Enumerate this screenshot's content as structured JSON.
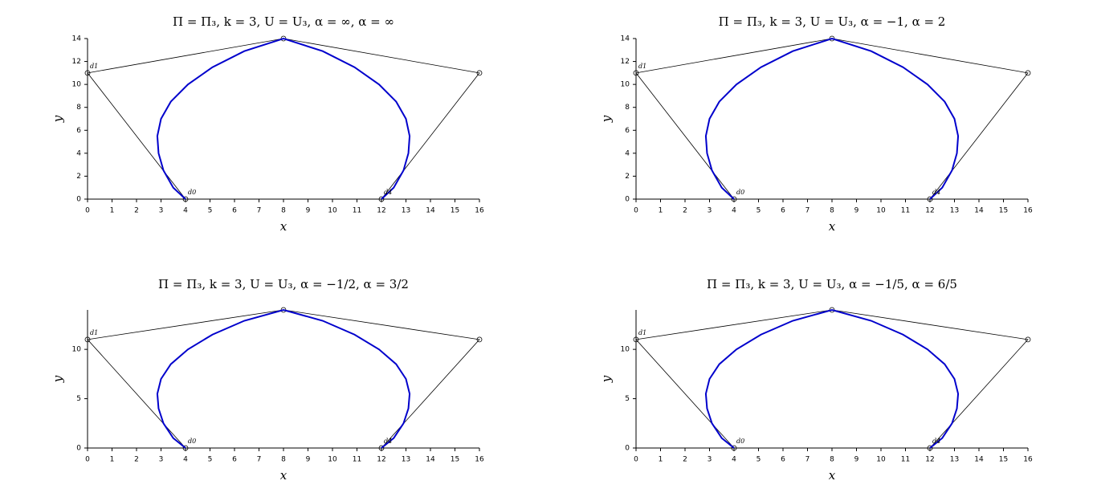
{
  "chart_data": [
    {
      "type": "line",
      "title": "Π = Π₃, k = 3, U = U₃, α = ∞, α = ∞",
      "xlabel": "x",
      "ylabel": "y",
      "xlim": [
        0,
        16
      ],
      "ylim": [
        0,
        14
      ],
      "xticks": [
        0,
        1,
        2,
        3,
        4,
        5,
        6,
        7,
        8,
        9,
        10,
        11,
        12,
        13,
        14,
        15,
        16
      ],
      "yticks": [
        0,
        2,
        4,
        6,
        8,
        10,
        12,
        14
      ],
      "series": [
        {
          "color": "#000000",
          "markers": true,
          "x": [
            4,
            0,
            8,
            16,
            12
          ],
          "y": [
            0,
            11,
            14,
            11,
            0
          ]
        },
        {
          "color": "#0000cc",
          "x": [
            4,
            3.5,
            3.1,
            2.9,
            2.85,
            3.0,
            3.4,
            4.1,
            5.1,
            6.4,
            8,
            9.6,
            10.9,
            11.9,
            12.6,
            13.0,
            13.15,
            13.1,
            12.9,
            12.5,
            12
          ],
          "y": [
            0,
            1,
            2.5,
            4,
            5.5,
            7,
            8.5,
            10,
            11.5,
            12.9,
            14,
            12.9,
            11.5,
            10,
            8.5,
            7,
            5.5,
            4,
            2.5,
            1,
            0
          ]
        }
      ],
      "annotations": [
        {
          "text": "d0",
          "x": 4,
          "y": 0
        },
        {
          "text": "d1",
          "x": 0,
          "y": 11
        },
        {
          "text": "d4",
          "x": 12,
          "y": 0
        }
      ]
    },
    {
      "type": "line",
      "title": "Π = Π₃, k = 3, U = U₃, α = −1, α = 2",
      "xlabel": "x",
      "ylabel": "y",
      "xlim": [
        0,
        16
      ],
      "ylim": [
        0,
        14
      ],
      "xticks": [
        0,
        1,
        2,
        3,
        4,
        5,
        6,
        7,
        8,
        9,
        10,
        11,
        12,
        13,
        14,
        15,
        16
      ],
      "yticks": [
        0,
        2,
        4,
        6,
        8,
        10,
        12,
        14
      ],
      "series": [
        {
          "color": "#000000",
          "markers": true,
          "x": [
            4,
            0,
            8,
            16,
            12
          ],
          "y": [
            0,
            11,
            14,
            11,
            0
          ]
        },
        {
          "color": "#0000cc",
          "x": [
            4,
            3.5,
            3.1,
            2.9,
            2.85,
            3.0,
            3.4,
            4.1,
            5.1,
            6.4,
            8,
            9.6,
            10.9,
            11.9,
            12.6,
            13.0,
            13.15,
            13.1,
            12.9,
            12.5,
            12
          ],
          "y": [
            0,
            1,
            2.5,
            4,
            5.5,
            7,
            8.5,
            10,
            11.5,
            12.9,
            14,
            12.9,
            11.5,
            10,
            8.5,
            7,
            5.5,
            4,
            2.5,
            1,
            0
          ]
        }
      ],
      "annotations": [
        {
          "text": "d0",
          "x": 4,
          "y": 0
        },
        {
          "text": "d1",
          "x": 0,
          "y": 11
        },
        {
          "text": "d4",
          "x": 12,
          "y": 0
        }
      ]
    },
    {
      "type": "line",
      "title": "Π = Π₃, k = 3, U = U₃, α = −1/2, α = 3/2",
      "xlabel": "x",
      "ylabel": "y",
      "xlim": [
        0,
        16
      ],
      "ylim": [
        0,
        14
      ],
      "xticks": [
        0,
        1,
        2,
        3,
        4,
        5,
        6,
        7,
        8,
        9,
        10,
        11,
        12,
        13,
        14,
        15,
        16
      ],
      "yticks": [
        0,
        5,
        10
      ],
      "series": [
        {
          "color": "#000000",
          "markers": true,
          "x": [
            4,
            0,
            8,
            16,
            12
          ],
          "y": [
            0,
            11,
            14,
            11,
            0
          ]
        },
        {
          "color": "#0000cc",
          "x": [
            4,
            3.5,
            3.1,
            2.9,
            2.85,
            3.0,
            3.4,
            4.1,
            5.1,
            6.4,
            8,
            9.6,
            10.9,
            11.9,
            12.6,
            13.0,
            13.15,
            13.1,
            12.9,
            12.5,
            12
          ],
          "y": [
            0,
            1,
            2.5,
            4,
            5.5,
            7,
            8.5,
            10,
            11.5,
            12.9,
            14,
            12.9,
            11.5,
            10,
            8.5,
            7,
            5.5,
            4,
            2.5,
            1,
            0
          ]
        }
      ],
      "annotations": [
        {
          "text": "d0",
          "x": 4,
          "y": 0
        },
        {
          "text": "d1",
          "x": 0,
          "y": 11
        },
        {
          "text": "d4",
          "x": 12,
          "y": 0
        }
      ]
    },
    {
      "type": "line",
      "title": "Π = Π₃, k = 3, U = U₃, α = −1/5, α = 6/5",
      "xlabel": "x",
      "ylabel": "y",
      "xlim": [
        0,
        16
      ],
      "ylim": [
        0,
        14
      ],
      "xticks": [
        0,
        1,
        2,
        3,
        4,
        5,
        6,
        7,
        8,
        9,
        10,
        11,
        12,
        13,
        14,
        15,
        16
      ],
      "yticks": [
        0,
        5,
        10
      ],
      "series": [
        {
          "color": "#000000",
          "markers": true,
          "x": [
            4,
            0,
            8,
            16,
            12
          ],
          "y": [
            0,
            11,
            14,
            11,
            0
          ]
        },
        {
          "color": "#0000cc",
          "x": [
            4,
            3.5,
            3.1,
            2.9,
            2.85,
            3.0,
            3.4,
            4.1,
            5.1,
            6.4,
            8,
            9.6,
            10.9,
            11.9,
            12.6,
            13.0,
            13.15,
            13.1,
            12.9,
            12.5,
            12
          ],
          "y": [
            0,
            1,
            2.5,
            4,
            5.5,
            7,
            8.5,
            10,
            11.5,
            12.9,
            14,
            12.9,
            11.5,
            10,
            8.5,
            7,
            5.5,
            4,
            2.5,
            1,
            0
          ]
        }
      ],
      "annotations": [
        {
          "text": "d0",
          "x": 4,
          "y": 0
        },
        {
          "text": "d1",
          "x": 0,
          "y": 11
        },
        {
          "text": "d4",
          "x": 12,
          "y": 0
        }
      ]
    }
  ]
}
